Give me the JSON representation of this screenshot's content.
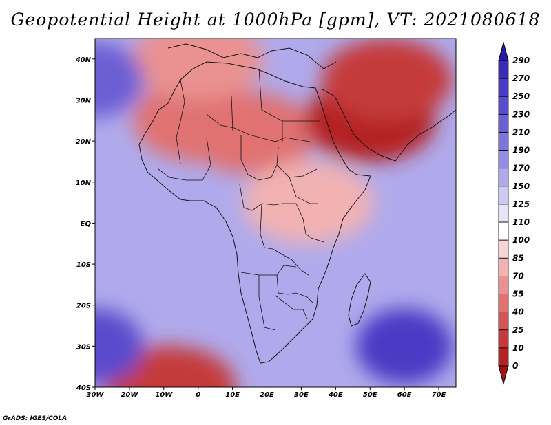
{
  "title": "Geopotential Height at 1000hPa [gpm], VT: 2021080618",
  "credit": "GrADS: IGES/COLA",
  "map": {
    "projection": "lat-lon",
    "lon_range": [
      -30,
      75
    ],
    "lat_range": [
      -40,
      45
    ],
    "lon_ticks": [
      {
        "value": -30,
        "label": "30W"
      },
      {
        "value": -20,
        "label": "20W"
      },
      {
        "value": -10,
        "label": "10W"
      },
      {
        "value": 0,
        "label": "0"
      },
      {
        "value": 10,
        "label": "10E"
      },
      {
        "value": 20,
        "label": "20E"
      },
      {
        "value": 30,
        "label": "30E"
      },
      {
        "value": 40,
        "label": "40E"
      },
      {
        "value": 50,
        "label": "50E"
      },
      {
        "value": 60,
        "label": "60E"
      },
      {
        "value": 70,
        "label": "70E"
      }
    ],
    "lat_ticks": [
      {
        "value": 40,
        "label": "40N"
      },
      {
        "value": 30,
        "label": "30N"
      },
      {
        "value": 20,
        "label": "20N"
      },
      {
        "value": 10,
        "label": "10N"
      },
      {
        "value": 0,
        "label": "EQ"
      },
      {
        "value": -10,
        "label": "10S"
      },
      {
        "value": -20,
        "label": "20S"
      },
      {
        "value": -30,
        "label": "30S"
      },
      {
        "value": -40,
        "label": "40S"
      }
    ],
    "field_features": [
      {
        "name": "north-africa-low",
        "lon": 15,
        "lat": 22,
        "value": 40
      },
      {
        "name": "sahara-low",
        "lon": 0,
        "lat": 25,
        "value": 45
      },
      {
        "name": "arabia-thermal-low",
        "lon": 50,
        "lat": 25,
        "value": 5
      },
      {
        "name": "mideast-low",
        "lon": 55,
        "lat": 35,
        "value": 15
      },
      {
        "name": "west-med-low",
        "lon": 0,
        "lat": 40,
        "value": 55
      },
      {
        "name": "east-africa-low",
        "lon": 32,
        "lat": 5,
        "value": 80
      },
      {
        "name": "south-ocean-low",
        "lon": -8,
        "lat": -40,
        "value": 20
      },
      {
        "name": "azores-high",
        "lon": -30,
        "lat": 35,
        "value": 215
      },
      {
        "name": "st-helena-high",
        "lon": -30,
        "lat": -30,
        "value": 240
      },
      {
        "name": "mascarene-high",
        "lon": 60,
        "lat": -30,
        "value": 250
      }
    ]
  },
  "colorbar": {
    "levels": [
      "290",
      "270",
      "250",
      "230",
      "210",
      "190",
      "170",
      "150",
      "125",
      "110",
      "100",
      "85",
      "70",
      "55",
      "40",
      "25",
      "10",
      "0"
    ],
    "colors": [
      "#2a1aa8",
      "#3b2cb8",
      "#4a3bc4",
      "#5a4ccc",
      "#6c5fd4",
      "#7f74dc",
      "#958ce3",
      "#b0aaec",
      "#cdcaf4",
      "#e6e5fa",
      "#ffffff",
      "#f8d4d4",
      "#f2b2b2",
      "#ea9191",
      "#e07272",
      "#d35555",
      "#c53a3a",
      "#b42424",
      "#a01414"
    ]
  }
}
